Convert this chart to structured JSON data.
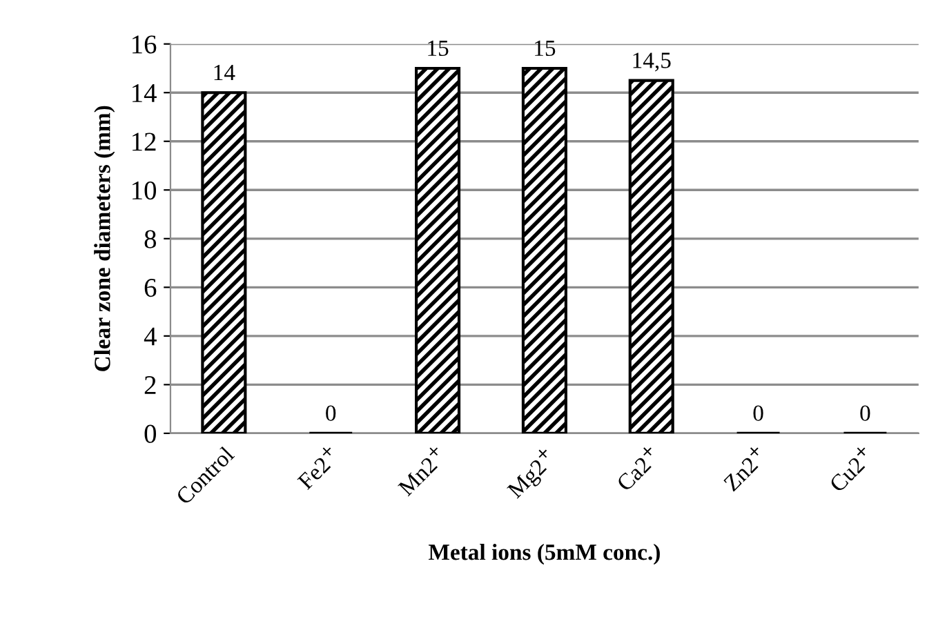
{
  "chart_data": {
    "type": "bar",
    "xlabel": "Metal ions (5mM conc.)",
    "ylabel": "Clear zone diameters (mm)",
    "categories": [
      "Control",
      "Fe2$^{+}$",
      "Mn2$^{+}$",
      "Mg2$^{+}$",
      "Ca2$^{+}$",
      "Zn2$^{+}$",
      "Cu2$^{+}$"
    ],
    "values": [
      14,
      0,
      15,
      15,
      14.5,
      0,
      0
    ],
    "value_labels": [
      "14",
      "0",
      "15",
      "15",
      "14,5",
      "0",
      "0"
    ],
    "color": "#000000",
    "ylim": [
      0,
      16
    ],
    "yticks": [
      0,
      2,
      4,
      6,
      8,
      10,
      12,
      14,
      16
    ],
    "grid": "y",
    "legend": false
  }
}
